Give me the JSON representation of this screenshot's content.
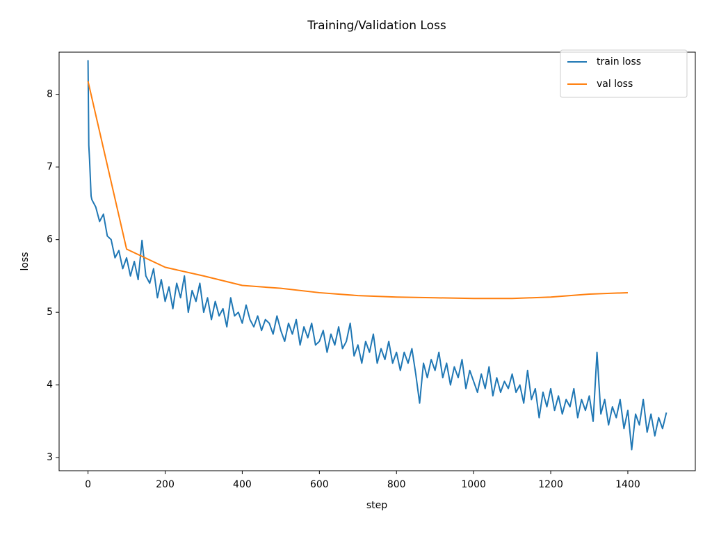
{
  "chart_data": {
    "type": "line",
    "title": "Training/Validation Loss",
    "x_label": "step",
    "y_label": "loss",
    "xlim": [
      -75,
      1575
    ],
    "ylim": [
      2.82,
      8.58
    ],
    "xticks": [
      0,
      200,
      400,
      600,
      800,
      1000,
      1200,
      1400
    ],
    "yticks": [
      3,
      4,
      5,
      6,
      7,
      8
    ],
    "legend": "upper right",
    "series": [
      {
        "name": "train loss",
        "color": "#1f77b4",
        "x": [
          0,
          2,
          4,
          6,
          8,
          10,
          20,
          30,
          40,
          50,
          60,
          70,
          80,
          90,
          100,
          110,
          120,
          130,
          140,
          150,
          160,
          170,
          180,
          190,
          200,
          210,
          220,
          230,
          240,
          250,
          260,
          270,
          280,
          290,
          300,
          310,
          320,
          330,
          340,
          350,
          360,
          370,
          380,
          390,
          400,
          410,
          420,
          430,
          440,
          450,
          460,
          470,
          480,
          490,
          500,
          510,
          520,
          530,
          540,
          550,
          560,
          570,
          580,
          590,
          600,
          610,
          620,
          630,
          640,
          650,
          660,
          670,
          680,
          690,
          700,
          710,
          720,
          730,
          740,
          750,
          760,
          770,
          780,
          790,
          800,
          810,
          820,
          830,
          840,
          850,
          860,
          870,
          880,
          890,
          900,
          910,
          920,
          930,
          940,
          950,
          960,
          970,
          980,
          990,
          1000,
          1010,
          1020,
          1030,
          1040,
          1050,
          1060,
          1070,
          1080,
          1090,
          1100,
          1110,
          1120,
          1130,
          1140,
          1150,
          1160,
          1170,
          1180,
          1190,
          1200,
          1210,
          1220,
          1230,
          1240,
          1250,
          1260,
          1270,
          1280,
          1290,
          1300,
          1310,
          1320,
          1330,
          1340,
          1350,
          1360,
          1370,
          1380,
          1390,
          1400,
          1410,
          1420,
          1430,
          1440,
          1450,
          1460,
          1470,
          1480,
          1490,
          1500
        ],
        "values": [
          8.47,
          7.3,
          7.1,
          6.85,
          6.6,
          6.55,
          6.45,
          6.25,
          6.35,
          6.05,
          6.0,
          5.75,
          5.85,
          5.6,
          5.75,
          5.5,
          5.7,
          5.45,
          5.99,
          5.5,
          5.4,
          5.6,
          5.2,
          5.45,
          5.15,
          5.35,
          5.05,
          5.4,
          5.2,
          5.5,
          5.0,
          5.3,
          5.15,
          5.4,
          5.0,
          5.2,
          4.9,
          5.15,
          4.95,
          5.05,
          4.8,
          5.2,
          4.95,
          5.0,
          4.85,
          5.1,
          4.9,
          4.8,
          4.95,
          4.75,
          4.9,
          4.85,
          4.7,
          4.95,
          4.75,
          4.6,
          4.85,
          4.7,
          4.9,
          4.55,
          4.8,
          4.65,
          4.85,
          4.55,
          4.6,
          4.75,
          4.45,
          4.7,
          4.55,
          4.8,
          4.5,
          4.6,
          4.85,
          4.4,
          4.55,
          4.3,
          4.6,
          4.45,
          4.7,
          4.3,
          4.5,
          4.35,
          4.6,
          4.3,
          4.45,
          4.2,
          4.45,
          4.3,
          4.5,
          4.15,
          3.75,
          4.3,
          4.1,
          4.35,
          4.2,
          4.45,
          4.1,
          4.3,
          4.0,
          4.25,
          4.1,
          4.35,
          3.95,
          4.2,
          4.05,
          3.9,
          4.15,
          3.95,
          4.25,
          3.85,
          4.1,
          3.9,
          4.05,
          3.95,
          4.15,
          3.9,
          4.0,
          3.75,
          4.2,
          3.8,
          3.95,
          3.55,
          3.9,
          3.7,
          3.95,
          3.65,
          3.85,
          3.6,
          3.8,
          3.7,
          3.95,
          3.55,
          3.8,
          3.65,
          3.85,
          3.5,
          4.45,
          3.6,
          3.8,
          3.45,
          3.7,
          3.55,
          3.8,
          3.4,
          3.65,
          3.11,
          3.6,
          3.45,
          3.8,
          3.35,
          3.6,
          3.3,
          3.55,
          3.4,
          3.62
        ]
      },
      {
        "name": "val loss",
        "color": "#ff7f0e",
        "x": [
          0,
          100,
          200,
          300,
          400,
          500,
          600,
          700,
          800,
          900,
          1000,
          1100,
          1200,
          1300,
          1400
        ],
        "values": [
          8.18,
          5.87,
          5.62,
          5.5,
          5.37,
          5.33,
          5.27,
          5.23,
          5.21,
          5.2,
          5.19,
          5.19,
          5.21,
          5.25,
          5.27
        ]
      }
    ]
  }
}
